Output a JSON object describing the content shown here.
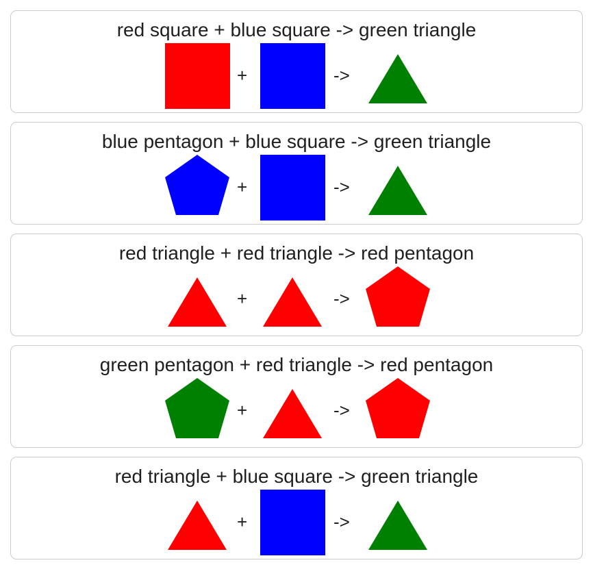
{
  "rules": [
    {
      "label": "red square + blue square -> green triangle",
      "operator": "+",
      "arrow": "->",
      "inputs": [
        {
          "color": "red",
          "shape": "square",
          "fill": "#ff0000"
        },
        {
          "color": "blue",
          "shape": "square",
          "fill": "#0000ff"
        }
      ],
      "output": {
        "color": "green",
        "shape": "triangle",
        "fill": "#008000"
      }
    },
    {
      "label": "blue pentagon + blue square -> green triangle",
      "operator": "+",
      "arrow": "->",
      "inputs": [
        {
          "color": "blue",
          "shape": "pentagon",
          "fill": "#0000ff"
        },
        {
          "color": "blue",
          "shape": "square",
          "fill": "#0000ff"
        }
      ],
      "output": {
        "color": "green",
        "shape": "triangle",
        "fill": "#008000"
      }
    },
    {
      "label": "red triangle + red triangle -> red pentagon",
      "operator": "+",
      "arrow": "->",
      "inputs": [
        {
          "color": "red",
          "shape": "triangle",
          "fill": "#ff0000"
        },
        {
          "color": "red",
          "shape": "triangle",
          "fill": "#ff0000"
        }
      ],
      "output": {
        "color": "red",
        "shape": "pentagon",
        "fill": "#ff0000"
      }
    },
    {
      "label": "green pentagon + red triangle -> red pentagon",
      "operator": "+",
      "arrow": "->",
      "inputs": [
        {
          "color": "green",
          "shape": "pentagon",
          "fill": "#008000"
        },
        {
          "color": "red",
          "shape": "triangle",
          "fill": "#ff0000"
        }
      ],
      "output": {
        "color": "red",
        "shape": "pentagon",
        "fill": "#ff0000"
      }
    },
    {
      "label": "red triangle + blue square -> green triangle",
      "operator": "+",
      "arrow": "->",
      "inputs": [
        {
          "color": "red",
          "shape": "triangle",
          "fill": "#ff0000"
        },
        {
          "color": "blue",
          "shape": "square",
          "fill": "#0000ff"
        }
      ],
      "output": {
        "color": "green",
        "shape": "triangle",
        "fill": "#008000"
      }
    }
  ]
}
